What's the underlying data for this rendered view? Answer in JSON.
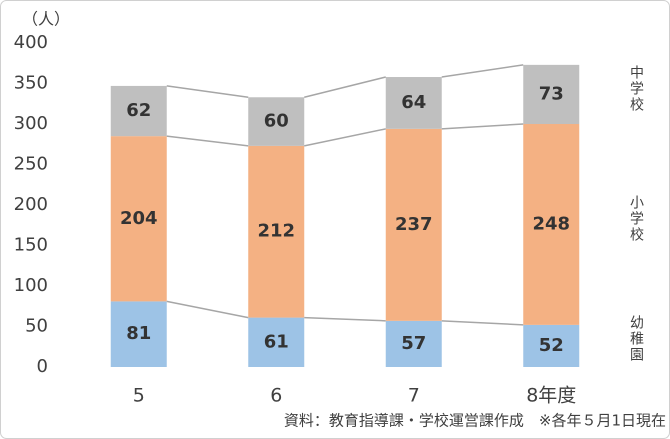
{
  "chart_data": {
    "type": "stacked-bar",
    "y_unit": "（人）",
    "categories": [
      "5",
      "6",
      "7",
      "8年度"
    ],
    "series": [
      {
        "name": "幼稚園",
        "color": "#9dc3e6",
        "values": [
          81,
          61,
          57,
          52
        ]
      },
      {
        "name": "小学校",
        "color": "#f4b183",
        "values": [
          204,
          212,
          237,
          248
        ]
      },
      {
        "name": "中学校",
        "color": "#bfbfbf",
        "values": [
          62,
          60,
          64,
          73
        ]
      }
    ],
    "ylim": [
      0,
      400
    ],
    "yticks": [
      0,
      50,
      100,
      150,
      200,
      250,
      300,
      350,
      400
    ],
    "connector_color": "#a6a6a6",
    "note": "資料：教育指導課・学校運営課作成　※各年５月1日現在"
  }
}
